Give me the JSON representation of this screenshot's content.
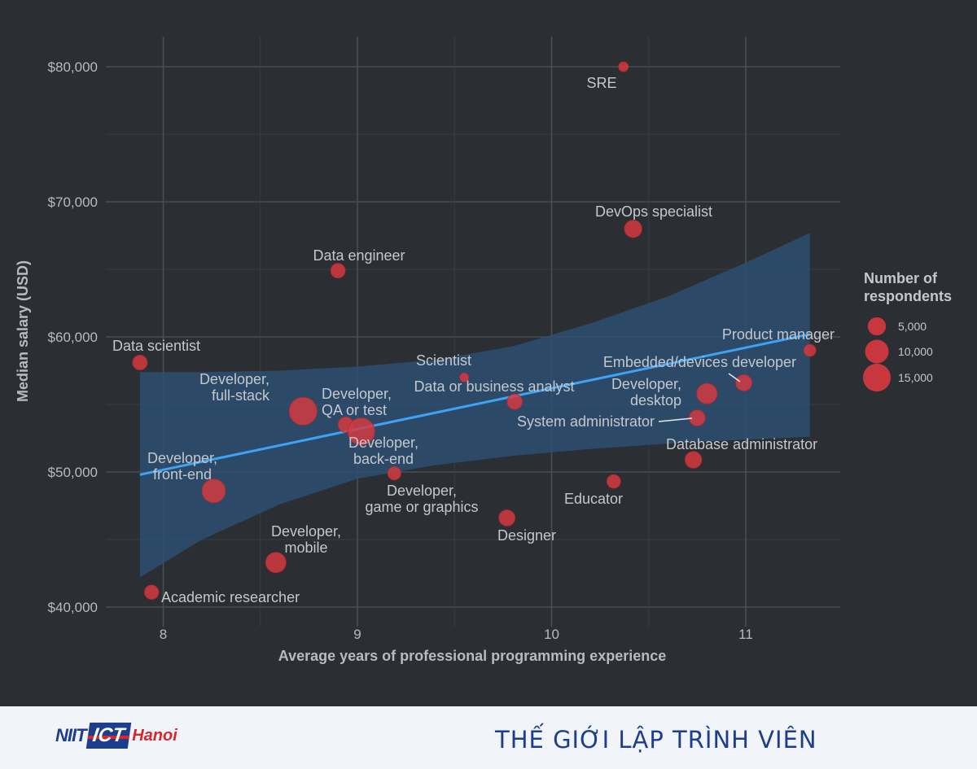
{
  "chart_data": {
    "type": "scatter",
    "xlabel": "Average years of professional programming experience",
    "ylabel": "Median salary (USD)",
    "xlim": [
      7.7,
      11.5
    ],
    "ylim": [
      39500,
      82000
    ],
    "x_ticks": [
      8,
      9,
      10,
      11
    ],
    "x_tick_labels": [
      "8",
      "9",
      "10",
      "11"
    ],
    "y_ticks": [
      40000,
      50000,
      60000,
      70000,
      80000
    ],
    "y_tick_labels": [
      "$40,000",
      "$50,000",
      "$60,000",
      "$70,000",
      "$80,000"
    ],
    "point_color": "#d9393f",
    "trend_color": "#3fa3f5",
    "band_color": "#2d4f72",
    "grid": true,
    "trend": {
      "x": [
        7.88,
        11.33
      ],
      "y": [
        49800,
        60200
      ]
    },
    "band": {
      "x": [
        7.88,
        8.2,
        8.6,
        9.0,
        9.4,
        9.8,
        10.2,
        10.6,
        11.0,
        11.33
      ],
      "upper": [
        57400,
        57400,
        57500,
        57800,
        58300,
        59300,
        61000,
        63000,
        65500,
        67700
      ],
      "lower": [
        42200,
        45000,
        47600,
        49500,
        50500,
        51200,
        51700,
        52100,
        52400,
        52600
      ]
    },
    "legend": {
      "title": [
        "Number of",
        "respondents"
      ],
      "entries": [
        {
          "label": "5,000",
          "size": 5000
        },
        {
          "label": "10,000",
          "size": 10000
        },
        {
          "label": "15,000",
          "size": 15000
        }
      ]
    },
    "points": [
      {
        "name": "SRE",
        "lines": [
          "SRE"
        ],
        "x": 10.37,
        "y": 80000,
        "n": 700,
        "anchor": "middle"
      },
      {
        "name": "DevOps specialist",
        "lines": [
          "DevOps specialist"
        ],
        "x": 10.42,
        "y": 68000,
        "n": 4500,
        "anchor": "middle"
      },
      {
        "name": "Data engineer",
        "lines": [
          "Data engineer"
        ],
        "x": 8.9,
        "y": 64900,
        "n": 2700,
        "anchor": "middle"
      },
      {
        "name": "Data scientist",
        "lines": [
          "Data scientist"
        ],
        "x": 7.88,
        "y": 58100,
        "n": 2800,
        "anchor": "start"
      },
      {
        "name": "Scientist",
        "lines": [
          "Scientist"
        ],
        "x": 9.55,
        "y": 57000,
        "n": 500,
        "anchor": "middle"
      },
      {
        "name": "Product manager",
        "lines": [
          "Product manager"
        ],
        "x": 11.33,
        "y": 59000,
        "n": 1500,
        "anchor": "end"
      },
      {
        "name": "Embedded/devices developer",
        "lines": [
          "Embedded/devices developer"
        ],
        "x": 10.99,
        "y": 56600,
        "n": 3700,
        "anchor": "end"
      },
      {
        "name": "Data or business analyst",
        "lines": [
          "Data or business analyst"
        ],
        "x": 9.81,
        "y": 55200,
        "n": 3100,
        "anchor": "middle"
      },
      {
        "name": "Developer, desktop",
        "lines": [
          "Developer,",
          "desktop"
        ],
        "x": 10.8,
        "y": 55800,
        "n": 7000,
        "anchor": "end"
      },
      {
        "name": "System administrator",
        "lines": [
          "System administrator"
        ],
        "x": 10.75,
        "y": 54000,
        "n": 3500,
        "anchor": "end"
      },
      {
        "name": "Developer, full-stack",
        "lines": [
          "Developer,",
          "full-stack"
        ],
        "x": 8.72,
        "y": 54500,
        "n": 15000,
        "anchor": "end"
      },
      {
        "name": "Developer, QA or test",
        "lines": [
          "Developer,",
          "QA or test"
        ],
        "x": 8.94,
        "y": 53500,
        "n": 3200,
        "anchor": "start"
      },
      {
        "name": "Developer, back-end",
        "lines": [
          "Developer,",
          "back-end"
        ],
        "x": 9.02,
        "y": 53000,
        "n": 14000,
        "anchor": "middle"
      },
      {
        "name": "Database administrator",
        "lines": [
          "Database administrator"
        ],
        "x": 10.73,
        "y": 50900,
        "n": 4000,
        "anchor": "start"
      },
      {
        "name": "Developer, front-end",
        "lines": [
          "Developer,",
          "front-end"
        ],
        "x": 8.26,
        "y": 48600,
        "n": 10000,
        "anchor": "middle"
      },
      {
        "name": "Developer, game or graphics",
        "lines": [
          "Developer,",
          "game or graphics"
        ],
        "x": 9.19,
        "y": 49900,
        "n": 2000,
        "anchor": "middle"
      },
      {
        "name": "Educator",
        "lines": [
          "Educator"
        ],
        "x": 10.32,
        "y": 49300,
        "n": 2200,
        "anchor": "middle"
      },
      {
        "name": "Designer",
        "lines": [
          "Designer"
        ],
        "x": 9.77,
        "y": 46600,
        "n": 3600,
        "anchor": "middle"
      },
      {
        "name": "Developer, mobile",
        "lines": [
          "Developer,",
          "mobile"
        ],
        "x": 8.58,
        "y": 43300,
        "n": 6800,
        "anchor": "middle"
      },
      {
        "name": "Academic researcher",
        "lines": [
          "Academic researcher"
        ],
        "x": 7.94,
        "y": 41100,
        "n": 2500,
        "anchor": "start"
      }
    ]
  },
  "footer": {
    "logo_niit": "NIIT",
    "logo_ict": "ICT",
    "logo_hanoi": "Hanoi",
    "title": "THẾ GIỚI LẬP TRÌNH VIÊN"
  }
}
